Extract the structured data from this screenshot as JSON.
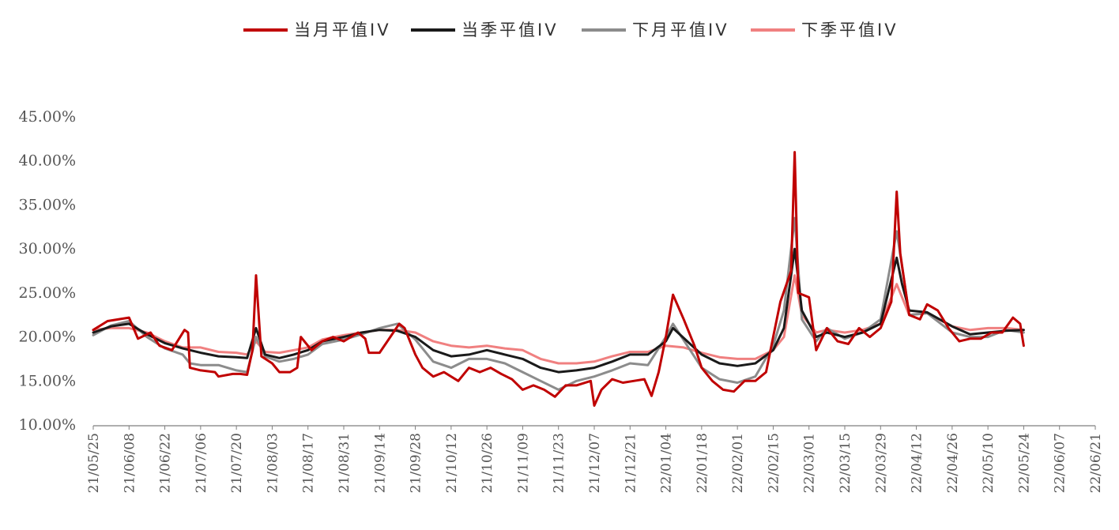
{
  "chart_data": {
    "type": "line",
    "title": "",
    "xlabel": "",
    "ylabel": "",
    "ylim": [
      0.1,
      0.45
    ],
    "y_ticks": [
      "10.00%",
      "15.00%",
      "20.00%",
      "25.00%",
      "30.00%",
      "35.00%",
      "40.00%",
      "45.00%"
    ],
    "x_ticks": [
      "21/05/25",
      "21/06/08",
      "21/06/22",
      "21/07/06",
      "21/07/20",
      "21/08/03",
      "21/08/17",
      "21/08/31",
      "21/09/14",
      "21/09/28",
      "21/10/12",
      "21/10/26",
      "21/11/09",
      "21/11/23",
      "21/12/07",
      "21/12/21",
      "22/01/04",
      "22/01/18",
      "22/02/01",
      "22/02/15",
      "22/03/01",
      "22/03/15",
      "22/03/29",
      "22/04/12",
      "22/04/26",
      "22/05/10",
      "22/05/24",
      "22/06/07",
      "22/06/21"
    ],
    "grid": false,
    "legend_position": "top-center",
    "series": [
      {
        "name": "当月平值IV",
        "color": "#C00000",
        "values": [
          [
            0,
            0.208
          ],
          [
            0.4,
            0.218
          ],
          [
            1,
            0.222
          ],
          [
            1.25,
            0.198
          ],
          [
            1.6,
            0.205
          ],
          [
            1.85,
            0.19
          ],
          [
            2.2,
            0.185
          ],
          [
            2.55,
            0.208
          ],
          [
            2.65,
            0.205
          ],
          [
            2.7,
            0.165
          ],
          [
            3.0,
            0.162
          ],
          [
            3.4,
            0.16
          ],
          [
            3.5,
            0.155
          ],
          [
            3.9,
            0.158
          ],
          [
            4.1,
            0.158
          ],
          [
            4.3,
            0.157
          ],
          [
            4.45,
            0.185
          ],
          [
            4.55,
            0.27
          ],
          [
            4.7,
            0.178
          ],
          [
            5.0,
            0.17
          ],
          [
            5.2,
            0.16
          ],
          [
            5.5,
            0.16
          ],
          [
            5.7,
            0.165
          ],
          [
            5.8,
            0.2
          ],
          [
            6.1,
            0.185
          ],
          [
            6.4,
            0.195
          ],
          [
            6.7,
            0.2
          ],
          [
            7.0,
            0.195
          ],
          [
            7.4,
            0.205
          ],
          [
            7.6,
            0.198
          ],
          [
            7.7,
            0.182
          ],
          [
            8.0,
            0.182
          ],
          [
            8.3,
            0.2
          ],
          [
            8.55,
            0.215
          ],
          [
            8.7,
            0.21
          ],
          [
            9.0,
            0.18
          ],
          [
            9.2,
            0.165
          ],
          [
            9.5,
            0.155
          ],
          [
            9.8,
            0.16
          ],
          [
            10.2,
            0.15
          ],
          [
            10.5,
            0.165
          ],
          [
            10.8,
            0.16
          ],
          [
            11.1,
            0.165
          ],
          [
            11.4,
            0.158
          ],
          [
            11.7,
            0.152
          ],
          [
            12.0,
            0.14
          ],
          [
            12.3,
            0.145
          ],
          [
            12.6,
            0.14
          ],
          [
            12.9,
            0.132
          ],
          [
            13.2,
            0.145
          ],
          [
            13.5,
            0.145
          ],
          [
            13.9,
            0.15
          ],
          [
            14.0,
            0.122
          ],
          [
            14.2,
            0.14
          ],
          [
            14.5,
            0.152
          ],
          [
            14.8,
            0.148
          ],
          [
            15.1,
            0.15
          ],
          [
            15.4,
            0.152
          ],
          [
            15.6,
            0.133
          ],
          [
            15.8,
            0.16
          ],
          [
            16.0,
            0.2
          ],
          [
            16.2,
            0.248
          ],
          [
            16.5,
            0.22
          ],
          [
            16.8,
            0.19
          ],
          [
            17.0,
            0.165
          ],
          [
            17.3,
            0.15
          ],
          [
            17.6,
            0.14
          ],
          [
            17.9,
            0.138
          ],
          [
            18.2,
            0.15
          ],
          [
            18.5,
            0.15
          ],
          [
            18.8,
            0.16
          ],
          [
            19.0,
            0.2
          ],
          [
            19.2,
            0.24
          ],
          [
            19.5,
            0.275
          ],
          [
            19.6,
            0.41
          ],
          [
            19.7,
            0.25
          ],
          [
            20.0,
            0.245
          ],
          [
            20.2,
            0.185
          ],
          [
            20.5,
            0.21
          ],
          [
            20.8,
            0.195
          ],
          [
            21.1,
            0.192
          ],
          [
            21.4,
            0.21
          ],
          [
            21.7,
            0.2
          ],
          [
            22.0,
            0.21
          ],
          [
            22.3,
            0.24
          ],
          [
            22.45,
            0.365
          ],
          [
            22.55,
            0.295
          ],
          [
            22.8,
            0.225
          ],
          [
            23.1,
            0.22
          ],
          [
            23.3,
            0.237
          ],
          [
            23.6,
            0.23
          ],
          [
            23.9,
            0.21
          ],
          [
            24.2,
            0.195
          ],
          [
            24.5,
            0.198
          ],
          [
            24.8,
            0.198
          ],
          [
            25.1,
            0.205
          ],
          [
            25.4,
            0.205
          ],
          [
            25.7,
            0.222
          ],
          [
            25.9,
            0.215
          ],
          [
            26.0,
            0.19
          ]
        ]
      },
      {
        "name": "当季平值IV",
        "color": "#1A1A1A",
        "values": [
          [
            0,
            0.205
          ],
          [
            0.5,
            0.212
          ],
          [
            1,
            0.215
          ],
          [
            1.5,
            0.203
          ],
          [
            2.0,
            0.193
          ],
          [
            2.5,
            0.187
          ],
          [
            3.0,
            0.182
          ],
          [
            3.5,
            0.178
          ],
          [
            4.0,
            0.177
          ],
          [
            4.3,
            0.176
          ],
          [
            4.55,
            0.21
          ],
          [
            4.8,
            0.18
          ],
          [
            5.2,
            0.176
          ],
          [
            5.6,
            0.18
          ],
          [
            6.0,
            0.185
          ],
          [
            6.4,
            0.195
          ],
          [
            7.0,
            0.2
          ],
          [
            7.5,
            0.205
          ],
          [
            8.0,
            0.208
          ],
          [
            8.5,
            0.207
          ],
          [
            9.0,
            0.2
          ],
          [
            9.5,
            0.185
          ],
          [
            10.0,
            0.178
          ],
          [
            10.5,
            0.18
          ],
          [
            11.0,
            0.185
          ],
          [
            11.5,
            0.18
          ],
          [
            12.0,
            0.175
          ],
          [
            12.5,
            0.165
          ],
          [
            13.0,
            0.16
          ],
          [
            13.5,
            0.162
          ],
          [
            14.0,
            0.165
          ],
          [
            14.5,
            0.172
          ],
          [
            15.0,
            0.18
          ],
          [
            15.5,
            0.18
          ],
          [
            16.0,
            0.195
          ],
          [
            16.2,
            0.21
          ],
          [
            16.6,
            0.195
          ],
          [
            17.0,
            0.18
          ],
          [
            17.5,
            0.17
          ],
          [
            18.0,
            0.167
          ],
          [
            18.5,
            0.17
          ],
          [
            19.0,
            0.185
          ],
          [
            19.3,
            0.21
          ],
          [
            19.6,
            0.3
          ],
          [
            19.8,
            0.23
          ],
          [
            20.2,
            0.2
          ],
          [
            20.5,
            0.205
          ],
          [
            21.0,
            0.2
          ],
          [
            21.5,
            0.205
          ],
          [
            22.0,
            0.215
          ],
          [
            22.45,
            0.29
          ],
          [
            22.6,
            0.26
          ],
          [
            22.8,
            0.23
          ],
          [
            23.3,
            0.228
          ],
          [
            24.0,
            0.212
          ],
          [
            24.5,
            0.203
          ],
          [
            25.0,
            0.205
          ],
          [
            25.5,
            0.207
          ],
          [
            26.0,
            0.208
          ]
        ]
      },
      {
        "name": "下月平值IV",
        "color": "#8C8C8C",
        "values": [
          [
            0,
            0.202
          ],
          [
            0.5,
            0.213
          ],
          [
            1,
            0.218
          ],
          [
            1.5,
            0.2
          ],
          [
            2.0,
            0.187
          ],
          [
            2.5,
            0.18
          ],
          [
            2.7,
            0.17
          ],
          [
            3.0,
            0.168
          ],
          [
            3.5,
            0.168
          ],
          [
            4.0,
            0.162
          ],
          [
            4.3,
            0.16
          ],
          [
            4.55,
            0.2
          ],
          [
            4.8,
            0.178
          ],
          [
            5.2,
            0.172
          ],
          [
            5.6,
            0.175
          ],
          [
            6.0,
            0.18
          ],
          [
            6.4,
            0.192
          ],
          [
            7.0,
            0.197
          ],
          [
            7.5,
            0.203
          ],
          [
            8.0,
            0.21
          ],
          [
            8.5,
            0.215
          ],
          [
            9.0,
            0.197
          ],
          [
            9.5,
            0.172
          ],
          [
            10.0,
            0.165
          ],
          [
            10.5,
            0.175
          ],
          [
            11.0,
            0.175
          ],
          [
            11.5,
            0.17
          ],
          [
            12.0,
            0.16
          ],
          [
            12.5,
            0.15
          ],
          [
            13.0,
            0.14
          ],
          [
            13.5,
            0.15
          ],
          [
            14.0,
            0.155
          ],
          [
            14.5,
            0.162
          ],
          [
            15.0,
            0.17
          ],
          [
            15.5,
            0.168
          ],
          [
            16.0,
            0.2
          ],
          [
            16.2,
            0.215
          ],
          [
            16.6,
            0.19
          ],
          [
            17.0,
            0.165
          ],
          [
            17.5,
            0.152
          ],
          [
            18.0,
            0.148
          ],
          [
            18.5,
            0.155
          ],
          [
            19.0,
            0.19
          ],
          [
            19.3,
            0.23
          ],
          [
            19.6,
            0.335
          ],
          [
            19.8,
            0.22
          ],
          [
            20.2,
            0.195
          ],
          [
            20.5,
            0.21
          ],
          [
            21.0,
            0.198
          ],
          [
            21.5,
            0.205
          ],
          [
            22.0,
            0.22
          ],
          [
            22.45,
            0.32
          ],
          [
            22.6,
            0.28
          ],
          [
            22.8,
            0.225
          ],
          [
            23.3,
            0.227
          ],
          [
            24.0,
            0.205
          ],
          [
            24.5,
            0.2
          ],
          [
            25.0,
            0.2
          ],
          [
            25.5,
            0.208
          ],
          [
            26.0,
            0.205
          ]
        ]
      },
      {
        "name": "下季平值IV",
        "color": "#F08080",
        "values": [
          [
            0,
            0.208
          ],
          [
            0.5,
            0.21
          ],
          [
            1,
            0.21
          ],
          [
            1.5,
            0.205
          ],
          [
            2.0,
            0.195
          ],
          [
            2.5,
            0.188
          ],
          [
            3.0,
            0.188
          ],
          [
            3.5,
            0.183
          ],
          [
            4.0,
            0.182
          ],
          [
            4.3,
            0.18
          ],
          [
            4.55,
            0.195
          ],
          [
            4.8,
            0.183
          ],
          [
            5.2,
            0.182
          ],
          [
            5.6,
            0.185
          ],
          [
            6.0,
            0.188
          ],
          [
            6.4,
            0.197
          ],
          [
            7.0,
            0.202
          ],
          [
            7.5,
            0.205
          ],
          [
            8.0,
            0.208
          ],
          [
            8.5,
            0.208
          ],
          [
            9.0,
            0.205
          ],
          [
            9.5,
            0.195
          ],
          [
            10.0,
            0.19
          ],
          [
            10.5,
            0.188
          ],
          [
            11.0,
            0.19
          ],
          [
            11.5,
            0.187
          ],
          [
            12.0,
            0.185
          ],
          [
            12.5,
            0.175
          ],
          [
            13.0,
            0.17
          ],
          [
            13.5,
            0.17
          ],
          [
            14.0,
            0.172
          ],
          [
            14.5,
            0.178
          ],
          [
            15.0,
            0.183
          ],
          [
            15.5,
            0.183
          ],
          [
            16.0,
            0.19
          ],
          [
            16.5,
            0.188
          ],
          [
            17.0,
            0.182
          ],
          [
            17.5,
            0.177
          ],
          [
            18.0,
            0.175
          ],
          [
            18.5,
            0.175
          ],
          [
            19.0,
            0.185
          ],
          [
            19.3,
            0.2
          ],
          [
            19.6,
            0.27
          ],
          [
            19.8,
            0.225
          ],
          [
            20.2,
            0.205
          ],
          [
            20.5,
            0.208
          ],
          [
            21.0,
            0.205
          ],
          [
            21.5,
            0.208
          ],
          [
            22.0,
            0.215
          ],
          [
            22.45,
            0.26
          ],
          [
            22.6,
            0.245
          ],
          [
            22.8,
            0.225
          ],
          [
            23.3,
            0.227
          ],
          [
            24.0,
            0.212
          ],
          [
            24.5,
            0.208
          ],
          [
            25.0,
            0.21
          ],
          [
            25.5,
            0.21
          ],
          [
            26.0,
            0.208
          ]
        ]
      }
    ]
  }
}
